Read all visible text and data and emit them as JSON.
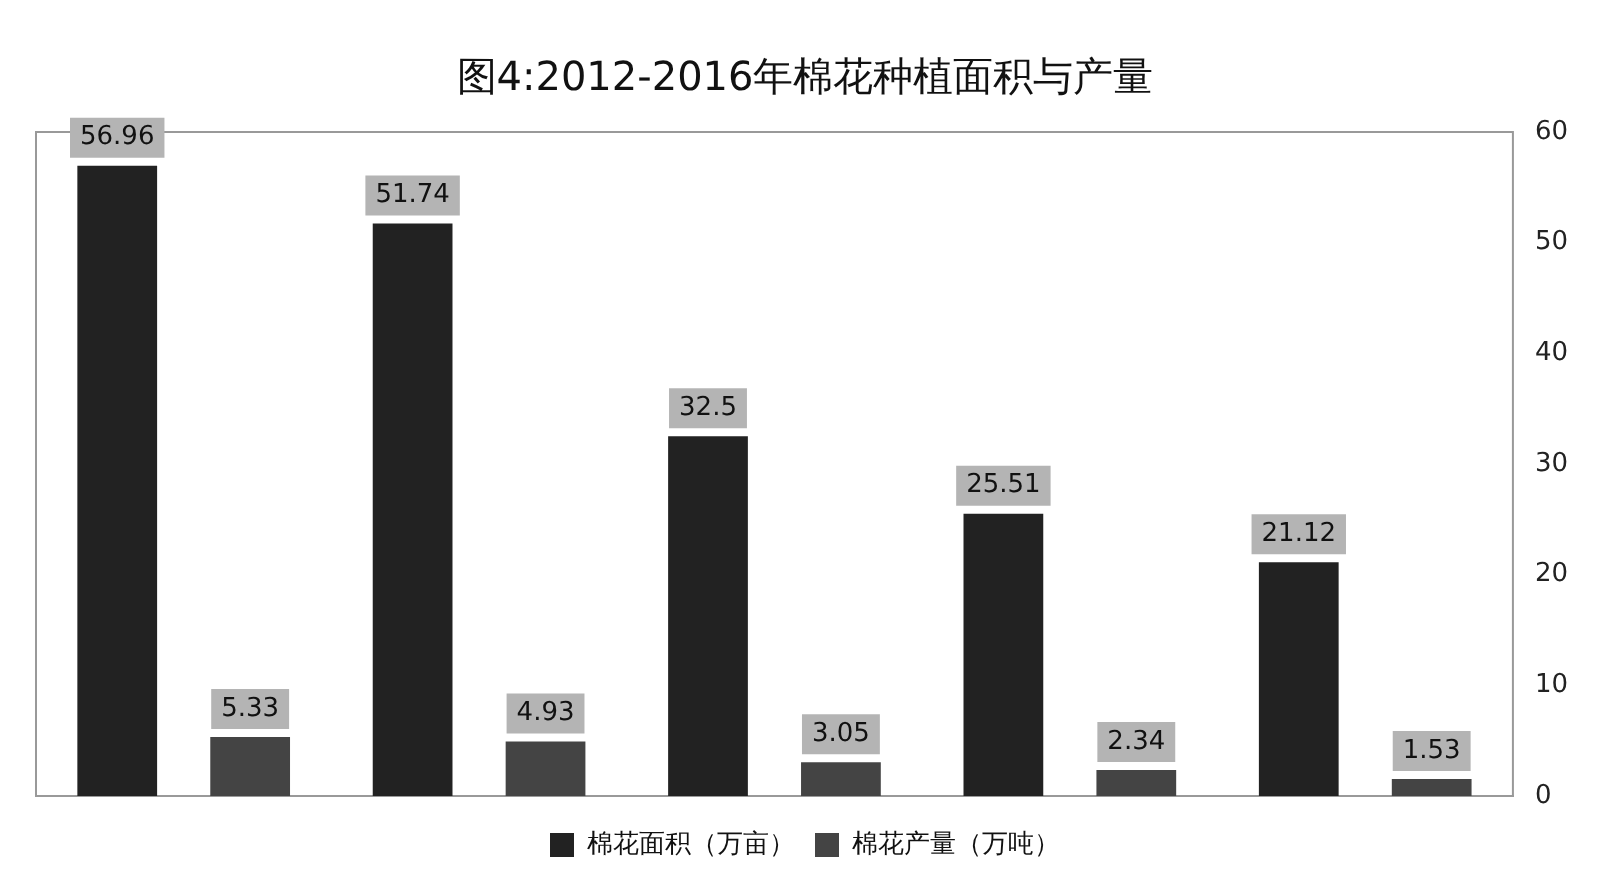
{
  "chart_data": {
    "type": "bar",
    "title": "图4:2012-2016年棉花种植面积与产量",
    "categories": [
      null,
      null,
      null,
      null,
      null
    ],
    "series": [
      {
        "name": "棉花面积（万亩）",
        "color": "#222222",
        "values": [
          56.96,
          51.74,
          32.5,
          25.51,
          21.12
        ]
      },
      {
        "name": "棉花产量（万吨）",
        "color": "#444444",
        "values": [
          5.33,
          4.93,
          3.05,
          2.34,
          1.53
        ]
      }
    ],
    "ylim": [
      0,
      60
    ],
    "yticks": [
      0,
      10,
      20,
      30,
      40,
      50,
      60
    ],
    "grid": false,
    "legend": "bottom",
    "data_labels": true,
    "tick_labels": "y"
  }
}
